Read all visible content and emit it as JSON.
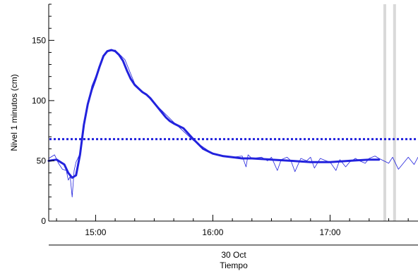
{
  "chart_data": {
    "type": "line",
    "ylabel": "Nivel 1 minutos (cm)",
    "xlabel_date": "30 Oct",
    "xlabel": "Tiempo",
    "ylim": [
      0,
      180
    ],
    "xlim": [
      "14:36",
      "17:45"
    ],
    "x_ticks": [
      "15:00",
      "16:00",
      "17:00"
    ],
    "y_ticks": [
      0,
      50,
      100,
      150
    ],
    "grid": false,
    "colors": {
      "series": "#2222dd",
      "threshold": "#2222dd",
      "gap_band": "#d9d9d9",
      "axis": "#000000"
    },
    "threshold": 68,
    "gap_marks": [
      "17:28",
      "17:33"
    ],
    "series": [
      {
        "style": "smoothed",
        "x": [
          "14:36",
          "14:40",
          "14:44",
          "14:46",
          "14:48",
          "14:50",
          "14:52",
          "14:54",
          "14:56",
          "14:58",
          "15:00",
          "15:02",
          "15:04",
          "15:06",
          "15:08",
          "15:10",
          "15:12",
          "15:14",
          "15:16",
          "15:18",
          "15:20",
          "15:22",
          "15:24",
          "15:26",
          "15:28",
          "15:30",
          "15:32",
          "15:34",
          "15:36",
          "15:38",
          "15:40",
          "15:45",
          "15:50",
          "15:55",
          "16:00",
          "16:05",
          "16:10",
          "16:15",
          "16:20",
          "16:30",
          "16:40",
          "16:50",
          "17:00",
          "17:10",
          "17:20",
          "17:25"
        ],
        "y": [
          50,
          51,
          47,
          40,
          36,
          38,
          55,
          80,
          97,
          109,
          118,
          128,
          137,
          141,
          142,
          141,
          138,
          133,
          125,
          118,
          113,
          110,
          107,
          105,
          102,
          98,
          94,
          90,
          86,
          83,
          81,
          77,
          68,
          60,
          56,
          54,
          53,
          52,
          52,
          51,
          50,
          49,
          49,
          50,
          51,
          51
        ]
      },
      {
        "style": "raw",
        "x": [
          "14:36",
          "14:39",
          "14:41",
          "14:43",
          "14:45",
          "14:46",
          "14:47",
          "14:48",
          "14:49",
          "14:50",
          "14:52",
          "14:54",
          "14:56",
          "14:58",
          "15:00",
          "15:05",
          "15:10",
          "15:15",
          "15:20",
          "15:30",
          "15:40",
          "15:50",
          "16:00",
          "16:10",
          "16:15",
          "16:17",
          "16:18",
          "16:20",
          "16:25",
          "16:28",
          "16:30",
          "16:33",
          "16:35",
          "16:38",
          "16:40",
          "16:42",
          "16:45",
          "16:48",
          "16:50",
          "16:52",
          "16:55",
          "16:58",
          "17:00",
          "17:03",
          "17:05",
          "17:08",
          "17:10",
          "17:13",
          "17:15",
          "17:18",
          "17:20",
          "17:23",
          "17:25",
          "17:30",
          "17:32",
          "17:35",
          "17:40",
          "17:43",
          "17:45"
        ],
        "y": [
          52,
          55,
          48,
          43,
          42,
          34,
          37,
          20,
          42,
          49,
          56,
          79,
          96,
          112,
          120,
          140,
          142,
          134,
          114,
          98,
          82,
          67,
          56,
          53,
          54,
          45,
          55,
          52,
          53,
          50,
          53,
          42,
          51,
          53,
          50,
          41,
          52,
          50,
          53,
          44,
          52,
          50,
          49,
          42,
          51,
          45,
          49,
          52,
          50,
          48,
          52,
          54,
          52,
          48,
          53,
          43,
          53,
          47,
          53
        ]
      }
    ]
  }
}
